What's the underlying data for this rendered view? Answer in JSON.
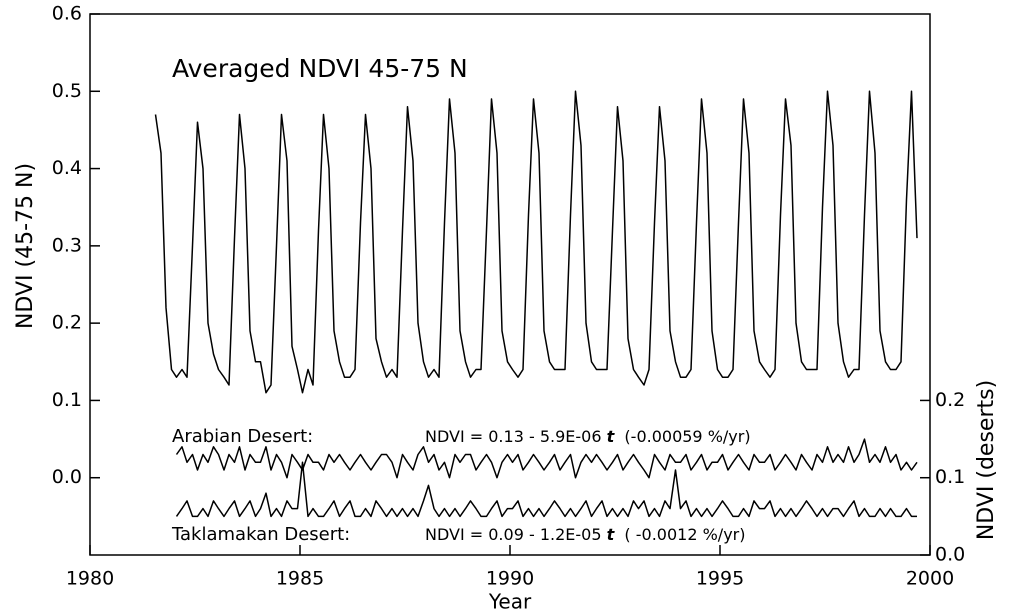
{
  "chart_data": {
    "type": "line",
    "title": "Averaged NDVI 45-75 N",
    "xlabel": "Year",
    "ylabel": "NDVI (45-75 N)",
    "y2label": "NDVI (deserts)",
    "annotations": [
      {
        "label": "Arabian Desert:",
        "equation": [
          "NDVI = 0.13 - 5.9E-06 ",
          "t",
          "  (-0.00059 %/yr)"
        ]
      },
      {
        "label": "Taklamakan Desert:",
        "equation": [
          "NDVI = 0.09 - 1.2E-05 ",
          "t",
          "  ( -0.0012 %/yr)"
        ]
      }
    ],
    "xlim": [
      1980,
      2000
    ],
    "xticks": [
      1980,
      1985,
      1990,
      1995,
      2000
    ],
    "ylim": [
      -0.1,
      0.6
    ],
    "yticks": [
      {
        "value": 0,
        "label": "0.0"
      },
      0.1,
      0.2,
      0.3,
      0.4,
      0.5,
      0.6
    ],
    "y2lim": [
      0,
      0.7
    ],
    "y2ticks": [
      {
        "value": 0,
        "label": "0.0"
      },
      0.1,
      0.2
    ],
    "x": [
      1981.56,
      1981.69,
      1981.81,
      1981.94,
      1982.06,
      1982.19,
      1982.31,
      1982.44,
      1982.56,
      1982.69,
      1982.81,
      1982.94,
      1983.06,
      1983.19,
      1983.31,
      1983.44,
      1983.56,
      1983.69,
      1983.81,
      1983.94,
      1984.06,
      1984.19,
      1984.31,
      1984.44,
      1984.56,
      1984.69,
      1984.81,
      1984.94,
      1985.06,
      1985.19,
      1985.31,
      1985.44,
      1985.56,
      1985.69,
      1985.81,
      1985.94,
      1986.06,
      1986.19,
      1986.31,
      1986.44,
      1986.56,
      1986.69,
      1986.81,
      1986.94,
      1987.06,
      1987.19,
      1987.31,
      1987.44,
      1987.56,
      1987.69,
      1987.81,
      1987.94,
      1988.06,
      1988.19,
      1988.31,
      1988.44,
      1988.56,
      1988.69,
      1988.81,
      1988.94,
      1989.06,
      1989.19,
      1989.31,
      1989.44,
      1989.56,
      1989.69,
      1989.81,
      1989.94,
      1990.06,
      1990.19,
      1990.31,
      1990.44,
      1990.56,
      1990.69,
      1990.81,
      1990.94,
      1991.06,
      1991.19,
      1991.31,
      1991.44,
      1991.56,
      1991.69,
      1991.81,
      1991.94,
      1992.06,
      1992.19,
      1992.31,
      1992.44,
      1992.56,
      1992.69,
      1992.81,
      1992.94,
      1993.06,
      1993.19,
      1993.31,
      1993.44,
      1993.56,
      1993.69,
      1993.81,
      1993.94,
      1994.06,
      1994.19,
      1994.31,
      1994.44,
      1994.56,
      1994.69,
      1994.81,
      1994.94,
      1995.06,
      1995.19,
      1995.31,
      1995.44,
      1995.56,
      1995.69,
      1995.81,
      1995.94,
      1996.06,
      1996.19,
      1996.31,
      1996.44,
      1996.56,
      1996.69,
      1996.81,
      1996.94,
      1997.06,
      1997.19,
      1997.31,
      1997.44,
      1997.56,
      1997.69,
      1997.81,
      1997.94,
      1998.06,
      1998.19,
      1998.31,
      1998.44,
      1998.56,
      1998.69,
      1998.81,
      1998.94,
      1999.06,
      1999.19,
      1999.31,
      1999.44,
      1999.56,
      1999.69
    ],
    "series": [
      {
        "name": "NDVI 45-75 N",
        "color": "#000000",
        "values": [
          0.47,
          0.42,
          0.22,
          0.14,
          0.13,
          0.14,
          0.13,
          0.3,
          0.46,
          0.4,
          0.2,
          0.16,
          0.14,
          0.13,
          0.12,
          0.31,
          0.47,
          0.4,
          0.19,
          0.15,
          0.15,
          0.11,
          0.12,
          0.3,
          0.47,
          0.41,
          0.17,
          0.14,
          0.11,
          0.14,
          0.12,
          0.32,
          0.47,
          0.4,
          0.19,
          0.15,
          0.13,
          0.13,
          0.14,
          0.33,
          0.47,
          0.4,
          0.18,
          0.15,
          0.13,
          0.14,
          0.13,
          0.32,
          0.48,
          0.41,
          0.2,
          0.15,
          0.13,
          0.14,
          0.13,
          0.33,
          0.49,
          0.42,
          0.19,
          0.15,
          0.13,
          0.14,
          0.14,
          0.32,
          0.49,
          0.42,
          0.19,
          0.15,
          0.14,
          0.13,
          0.14,
          0.34,
          0.49,
          0.42,
          0.19,
          0.15,
          0.14,
          0.14,
          0.14,
          0.34,
          0.5,
          0.43,
          0.2,
          0.15,
          0.14,
          0.14,
          0.14,
          0.32,
          0.48,
          0.41,
          0.18,
          0.14,
          0.13,
          0.12,
          0.14,
          0.33,
          0.48,
          0.41,
          0.19,
          0.15,
          0.13,
          0.13,
          0.14,
          0.33,
          0.49,
          0.42,
          0.19,
          0.14,
          0.13,
          0.13,
          0.14,
          0.33,
          0.49,
          0.42,
          0.19,
          0.15,
          0.14,
          0.13,
          0.14,
          0.34,
          0.49,
          0.43,
          0.2,
          0.15,
          0.14,
          0.14,
          0.14,
          0.35,
          0.5,
          0.43,
          0.2,
          0.15,
          0.13,
          0.14,
          0.14,
          0.34,
          0.5,
          0.42,
          0.19,
          0.15,
          0.14,
          0.14,
          0.15,
          0.36,
          0.5,
          0.31
        ]
      },
      {
        "name": "Arabian Desert",
        "color": "#000000",
        "axis": "y2",
        "values": [
          null,
          null,
          null,
          null,
          0.13,
          0.14,
          0.12,
          0.13,
          0.11,
          0.13,
          0.12,
          0.14,
          0.13,
          0.11,
          0.13,
          0.12,
          0.14,
          0.11,
          0.13,
          0.12,
          0.12,
          0.14,
          0.11,
          0.13,
          0.12,
          0.1,
          0.13,
          0.12,
          0.11,
          0.13,
          0.12,
          0.12,
          0.11,
          0.13,
          0.12,
          0.13,
          0.12,
          0.11,
          0.12,
          0.13,
          0.12,
          0.11,
          0.12,
          0.13,
          0.13,
          0.12,
          0.1,
          0.13,
          0.12,
          0.11,
          0.13,
          0.14,
          0.12,
          0.13,
          0.11,
          0.12,
          0.1,
          0.13,
          0.12,
          0.13,
          0.13,
          0.11,
          0.12,
          0.13,
          0.12,
          0.1,
          0.12,
          0.13,
          0.12,
          0.13,
          0.11,
          0.12,
          0.13,
          0.12,
          0.11,
          0.12,
          0.13,
          0.11,
          0.12,
          0.13,
          0.1,
          0.12,
          0.13,
          0.12,
          0.13,
          0.12,
          0.11,
          0.12,
          0.13,
          0.11,
          0.12,
          0.13,
          0.12,
          0.11,
          0.1,
          0.13,
          0.12,
          0.11,
          0.13,
          0.12,
          0.12,
          0.13,
          0.11,
          0.12,
          0.13,
          0.11,
          0.12,
          0.12,
          0.13,
          0.11,
          0.12,
          0.13,
          0.12,
          0.11,
          0.13,
          0.12,
          0.12,
          0.13,
          0.11,
          0.12,
          0.13,
          0.12,
          0.11,
          0.13,
          0.12,
          0.11,
          0.13,
          0.12,
          0.14,
          0.12,
          0.13,
          0.12,
          0.14,
          0.12,
          0.13,
          0.15,
          0.12,
          0.13,
          0.12,
          0.14,
          0.12,
          0.13,
          0.11,
          0.12,
          0.11,
          0.12
        ]
      },
      {
        "name": "Taklamakan Desert",
        "color": "#000000",
        "axis": "y2",
        "values": [
          null,
          null,
          null,
          null,
          0.05,
          0.06,
          0.07,
          0.05,
          0.05,
          0.06,
          0.05,
          0.07,
          0.06,
          0.05,
          0.06,
          0.07,
          0.05,
          0.06,
          0.07,
          0.05,
          0.06,
          0.08,
          0.05,
          0.06,
          0.05,
          0.07,
          0.06,
          0.06,
          0.12,
          0.05,
          0.06,
          0.05,
          0.05,
          0.06,
          0.07,
          0.05,
          0.06,
          0.07,
          0.05,
          0.05,
          0.06,
          0.05,
          0.07,
          0.06,
          0.05,
          0.06,
          0.05,
          0.06,
          0.05,
          0.06,
          0.05,
          0.07,
          0.09,
          0.06,
          0.05,
          0.06,
          0.05,
          0.06,
          0.05,
          0.06,
          0.07,
          0.06,
          0.05,
          0.05,
          0.06,
          0.07,
          0.05,
          0.06,
          0.06,
          0.07,
          0.05,
          0.06,
          0.05,
          0.06,
          0.05,
          0.06,
          0.07,
          0.06,
          0.05,
          0.06,
          0.05,
          0.06,
          0.07,
          0.05,
          0.06,
          0.07,
          0.05,
          0.06,
          0.05,
          0.06,
          0.05,
          0.07,
          0.06,
          0.07,
          0.05,
          0.06,
          0.05,
          0.07,
          0.06,
          0.11,
          0.06,
          0.07,
          0.05,
          0.06,
          0.05,
          0.06,
          0.05,
          0.06,
          0.07,
          0.06,
          0.05,
          0.05,
          0.06,
          0.05,
          0.07,
          0.06,
          0.06,
          0.07,
          0.05,
          0.06,
          0.05,
          0.06,
          0.05,
          0.06,
          0.07,
          0.06,
          0.05,
          0.06,
          0.05,
          0.06,
          0.06,
          0.05,
          0.06,
          0.07,
          0.05,
          0.06,
          0.05,
          0.05,
          0.06,
          0.05,
          0.06,
          0.05,
          0.05,
          0.06,
          0.05,
          0.05
        ]
      }
    ]
  }
}
